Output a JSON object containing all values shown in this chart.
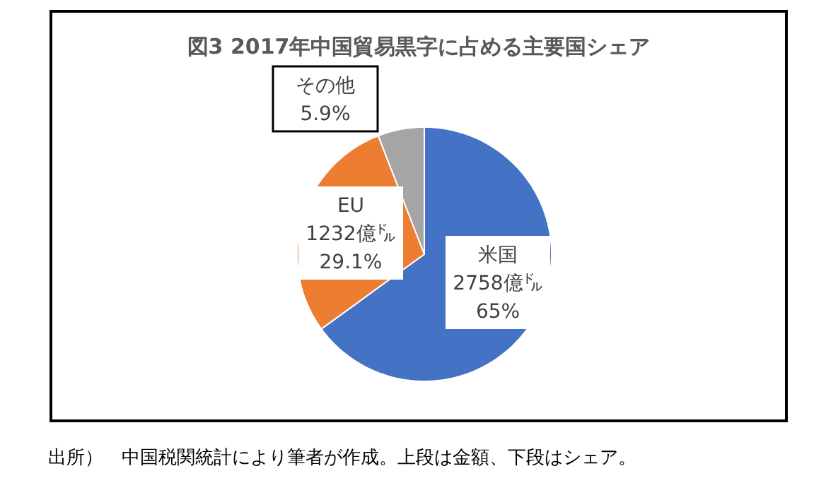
{
  "chart_data": {
    "type": "pie",
    "title": "図3  2017年中国貿易黒字に占める主要国シェア",
    "categories": [
      "米国",
      "EU",
      "その他"
    ],
    "values": [
      65,
      29.1,
      5.9
    ],
    "colors": [
      "#4472c4",
      "#ed7d31",
      "#a5a5a5"
    ],
    "value_labels": [
      "2758億㌦\n65%",
      "1232億㌦\n29.1%",
      "5.9%"
    ],
    "annotations": [
      "出所）　中国税関統計により筆者が作成。上段は金額、下段はシェア。"
    ]
  }
}
